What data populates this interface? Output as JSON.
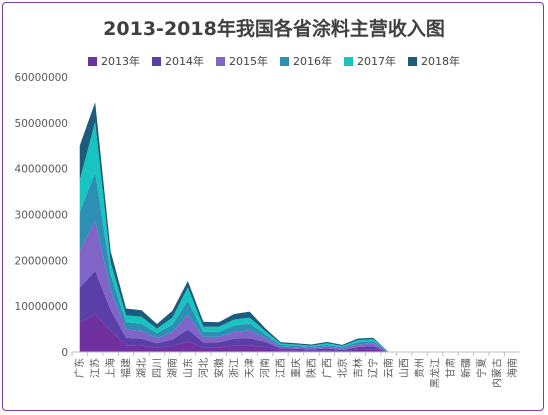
{
  "chart_data": {
    "type": "area",
    "stacked": true,
    "title": "2013-2018年我国各省涂料主营收入图",
    "legend_position": "top",
    "grid": false,
    "ylim": [
      0,
      60000000
    ],
    "yticks": [
      "0",
      "10000000",
      "20000000",
      "30000000",
      "40000000",
      "50000000",
      "60000000"
    ],
    "categories": [
      "广东",
      "江苏",
      "上海",
      "福建",
      "湖北",
      "四川",
      "湖南",
      "山东",
      "河北",
      "安徽",
      "浙江",
      "天津",
      "河南",
      "江西",
      "重庆",
      "陕西",
      "广西",
      "北京",
      "吉林",
      "辽宁",
      "云南",
      "山西",
      "贵州",
      "黑龙江",
      "甘肃",
      "新疆",
      "宁夏",
      "内蒙古",
      "海南"
    ],
    "series": [
      {
        "name": "2013年",
        "color": "#7030a0",
        "values": [
          6500000,
          8200000,
          4700000,
          1500000,
          1400000,
          900000,
          1300000,
          2300000,
          1000000,
          1000000,
          1400000,
          1400000,
          1100000,
          400000,
          350000,
          250000,
          400000,
          200000,
          550000,
          600000,
          0,
          0,
          0,
          0,
          0,
          0,
          0,
          0,
          0
        ]
      },
      {
        "name": "2014年",
        "color": "#5b3fa8",
        "values": [
          7500000,
          9500000,
          4500000,
          1600000,
          1500000,
          1000000,
          1400000,
          2600000,
          1100000,
          1100000,
          1500000,
          1600000,
          1100000,
          400000,
          350000,
          300000,
          400000,
          250000,
          550000,
          650000,
          0,
          0,
          0,
          0,
          0,
          0,
          0,
          0,
          0
        ]
      },
      {
        "name": "2015年",
        "color": "#8064c8",
        "values": [
          8000000,
          11000000,
          4300000,
          1800000,
          1700000,
          1100000,
          1700000,
          3200000,
          1200000,
          1200000,
          1500000,
          1700000,
          900000,
          400000,
          350000,
          300000,
          400000,
          300000,
          550000,
          650000,
          0,
          0,
          0,
          0,
          0,
          0,
          0,
          0,
          0
        ]
      },
      {
        "name": "2016年",
        "color": "#2e8fb5",
        "values": [
          8500000,
          10500000,
          3500000,
          1600000,
          1600000,
          1100000,
          1600000,
          3100000,
          1100000,
          1100000,
          1400000,
          1500000,
          800000,
          350000,
          300000,
          300000,
          350000,
          300000,
          500000,
          500000,
          0,
          0,
          0,
          0,
          0,
          0,
          0,
          0,
          0
        ]
      },
      {
        "name": "2017年",
        "color": "#17c5c0",
        "values": [
          7000000,
          11000000,
          2600000,
          1500000,
          1500000,
          1000000,
          1500000,
          2900000,
          1100000,
          1100000,
          1300000,
          1300000,
          700000,
          300000,
          300000,
          250000,
          350000,
          250000,
          450000,
          400000,
          0,
          0,
          0,
          0,
          0,
          0,
          0,
          0,
          0
        ]
      },
      {
        "name": "2018年",
        "color": "#1c5a7e",
        "values": [
          7500000,
          4300000,
          2400000,
          1500000,
          1400000,
          1000000,
          1500000,
          1400000,
          1100000,
          1000000,
          1200000,
          1300000,
          600000,
          300000,
          250000,
          250000,
          300000,
          250000,
          350000,
          300000,
          0,
          0,
          0,
          0,
          0,
          0,
          0,
          0,
          0
        ]
      }
    ]
  }
}
